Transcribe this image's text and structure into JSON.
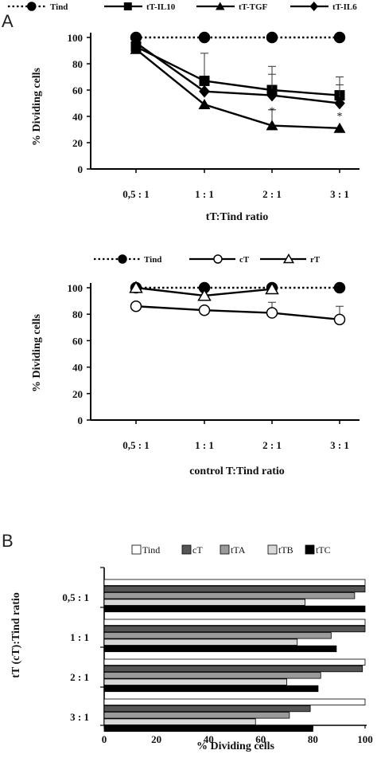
{
  "chart_data": [
    {
      "panel": "A",
      "type": "line",
      "categories": [
        "0,5 : 1",
        "1 : 1",
        "2 : 1",
        "3 : 1"
      ],
      "xlabel": "tT:Tind ratio",
      "ylabel": "% Dividing cells",
      "ylim": [
        0,
        100
      ],
      "yticks": [
        0,
        20,
        40,
        60,
        80,
        100
      ],
      "grid": false,
      "legend_position": "top",
      "series": [
        {
          "name": "Tind",
          "values": [
            100,
            100,
            100,
            100
          ],
          "errors": [
            0,
            0,
            0,
            0
          ],
          "marker": "circle-filled",
          "dashed": true
        },
        {
          "name": "tT-IL10",
          "values": [
            93,
            67,
            60,
            56
          ],
          "errors": [
            0,
            21,
            18,
            14
          ],
          "marker": "square",
          "dashed": false
        },
        {
          "name": "tT-TGF",
          "values": [
            91,
            49,
            33,
            31
          ],
          "errors": [
            0,
            0,
            12,
            0
          ],
          "marker": "triangle-filled",
          "dashed": false
        },
        {
          "name": "tT-IL6",
          "values": [
            96,
            59,
            56,
            50
          ],
          "errors": [
            0,
            0,
            16,
            14
          ],
          "marker": "diamond",
          "dashed": false
        }
      ],
      "annotations": [
        {
          "category": "2 : 1",
          "text": "*",
          "value": 47
        },
        {
          "category": "3 : 1",
          "text": "*",
          "value": 43
        }
      ]
    },
    {
      "panel": "A2",
      "type": "line",
      "categories": [
        "0,5 : 1",
        "1 : 1",
        "2 : 1",
        "3 : 1"
      ],
      "xlabel": "control  T:Tind ratio",
      "ylabel": "% Dividing cells",
      "ylim": [
        0,
        100
      ],
      "yticks": [
        0,
        20,
        40,
        60,
        80,
        100
      ],
      "grid": false,
      "legend_position": "top",
      "series": [
        {
          "name": "Tind",
          "values": [
            100,
            100,
            100,
            100
          ],
          "errors": [
            0,
            0,
            0,
            0
          ],
          "marker": "circle-filled",
          "dashed": true
        },
        {
          "name": "cT",
          "values": [
            86,
            83,
            81,
            76
          ],
          "errors": [
            0,
            0,
            8,
            10
          ],
          "marker": "circle-open",
          "dashed": false
        },
        {
          "name": "rT",
          "values": [
            100,
            94,
            99,
            null
          ],
          "errors": [
            0,
            0,
            0,
            0
          ],
          "marker": "triangle-open",
          "dashed": false
        }
      ]
    },
    {
      "panel": "B",
      "type": "bar",
      "orientation": "horizontal",
      "categories": [
        "0,5 : 1",
        "1 : 1",
        "2 : 1",
        "3 : 1"
      ],
      "xlabel": "% Dividing cells",
      "ylabel": "tT (cT):Tind ratio",
      "xlim": [
        0,
        100
      ],
      "xticks": [
        0,
        20,
        40,
        60,
        80,
        100
      ],
      "grid": false,
      "legend_position": "top",
      "series": [
        {
          "name": "Tind",
          "color": "#ffffff",
          "values": [
            100,
            100,
            100,
            100
          ]
        },
        {
          "name": "cT",
          "color": "#555555",
          "values": [
            100,
            100,
            99,
            79
          ]
        },
        {
          "name": "tTA",
          "color": "#9a9a9a",
          "values": [
            96,
            87,
            83,
            71
          ]
        },
        {
          "name": "tTB",
          "color": "#d8d8d8",
          "values": [
            77,
            74,
            70,
            58
          ]
        },
        {
          "name": "tTC",
          "color": "#000000",
          "values": [
            100,
            89,
            82,
            80
          ]
        }
      ]
    }
  ],
  "panel_labels": {
    "a": "A",
    "b": "B"
  }
}
